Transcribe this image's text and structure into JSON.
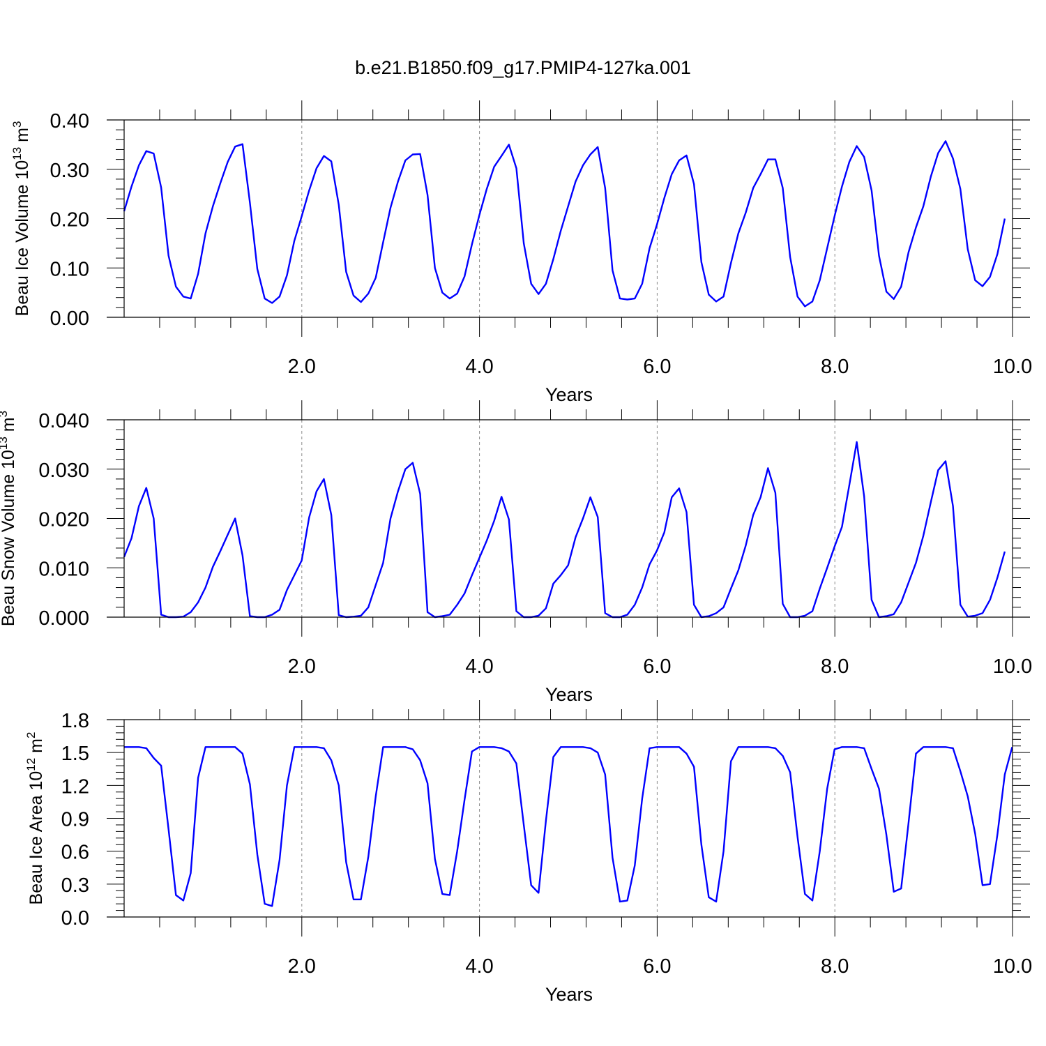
{
  "figure": {
    "title": "b.e21.B1850.f09_g17.PMIP4-127ka.001",
    "line_color": "#0000ff"
  },
  "chart_data": [
    {
      "type": "line",
      "title": "",
      "xlabel": "Years",
      "ylabel": "Beau Ice Volume 10",
      "ylabel_sup": "13",
      "ylabel_unit": "m",
      "ylabel_unit_sup": "3",
      "xlim": [
        0,
        10
      ],
      "ylim": [
        0,
        0.4
      ],
      "xticks": [
        2,
        4,
        6,
        8,
        10
      ],
      "xtick_labels": [
        "2.0",
        "4.0",
        "6.0",
        "8.0",
        "10.0"
      ],
      "yticks": [
        0,
        0.1,
        0.2,
        0.3,
        0.4
      ],
      "ytick_labels": [
        "0.00",
        "0.10",
        "0.20",
        "0.30",
        "0.40"
      ],
      "grid": "vertical dashed at major x ticks",
      "series": [
        {
          "x_start": 0,
          "x_step": 0.0833,
          "values": [
            0.215,
            0.265,
            0.308,
            0.337,
            0.332,
            0.263,
            0.125,
            0.062,
            0.042,
            0.038,
            0.088,
            0.17,
            0.225,
            0.272,
            0.315,
            0.346,
            0.351,
            0.232,
            0.098,
            0.038,
            0.029,
            0.042,
            0.085,
            0.155,
            0.205,
            0.257,
            0.302,
            0.327,
            0.316,
            0.228,
            0.092,
            0.044,
            0.031,
            0.048,
            0.08,
            0.152,
            0.222,
            0.275,
            0.318,
            0.33,
            0.331,
            0.248,
            0.1,
            0.05,
            0.038,
            0.048,
            0.083,
            0.148,
            0.207,
            0.26,
            0.305,
            0.327,
            0.35,
            0.302,
            0.15,
            0.068,
            0.047,
            0.068,
            0.118,
            0.175,
            0.225,
            0.275,
            0.308,
            0.33,
            0.345,
            0.262,
            0.095,
            0.038,
            0.036,
            0.038,
            0.068,
            0.14,
            0.188,
            0.242,
            0.29,
            0.318,
            0.328,
            0.27,
            0.112,
            0.046,
            0.032,
            0.042,
            0.11,
            0.17,
            0.212,
            0.262,
            0.29,
            0.32,
            0.32,
            0.262,
            0.122,
            0.042,
            0.022,
            0.032,
            0.075,
            0.14,
            0.205,
            0.265,
            0.315,
            0.347,
            0.325,
            0.257,
            0.125,
            0.052,
            0.037,
            0.062,
            0.132,
            0.182,
            0.225,
            0.285,
            0.333,
            0.357,
            0.322,
            0.26,
            0.138,
            0.075,
            0.063,
            0.082,
            0.128,
            0.2
          ]
        }
      ]
    },
    {
      "type": "line",
      "title": "",
      "xlabel": "Years",
      "ylabel": "Beau Snow Volume 10",
      "ylabel_sup": "13",
      "ylabel_unit": "m",
      "ylabel_unit_sup": "3",
      "xlim": [
        0,
        10
      ],
      "ylim": [
        0,
        0.04
      ],
      "xticks": [
        2,
        4,
        6,
        8,
        10
      ],
      "xtick_labels": [
        "2.0",
        "4.0",
        "6.0",
        "8.0",
        "10.0"
      ],
      "yticks": [
        0,
        0.01,
        0.02,
        0.03,
        0.04
      ],
      "ytick_labels": [
        "0.000",
        "0.010",
        "0.020",
        "0.030",
        "0.040"
      ],
      "grid": "vertical dashed at major x ticks",
      "series": [
        {
          "x_start": 0,
          "x_step": 0.0833,
          "values": [
            0.0122,
            0.016,
            0.0225,
            0.0262,
            0.02,
            0.0005,
            0.0,
            0.0,
            0.0001,
            0.001,
            0.003,
            0.006,
            0.0102,
            0.0134,
            0.0167,
            0.02,
            0.0125,
            0.0002,
            0.0,
            0.0,
            0.0005,
            0.0015,
            0.0055,
            0.0085,
            0.0115,
            0.0202,
            0.0255,
            0.028,
            0.0207,
            0.0004,
            0.0,
            0.0001,
            0.0003,
            0.002,
            0.0065,
            0.011,
            0.02,
            0.0255,
            0.03,
            0.0313,
            0.025,
            0.001,
            0.0,
            0.0002,
            0.0005,
            0.0025,
            0.0048,
            0.0085,
            0.012,
            0.0155,
            0.0195,
            0.0244,
            0.0198,
            0.0012,
            0.0,
            0.0,
            0.0003,
            0.0018,
            0.0068,
            0.0085,
            0.0105,
            0.0162,
            0.02,
            0.0243,
            0.0203,
            0.0008,
            0.0,
            0.0,
            0.0005,
            0.0025,
            0.006,
            0.0107,
            0.0135,
            0.0172,
            0.0243,
            0.0261,
            0.0213,
            0.0025,
            0.0,
            0.0002,
            0.0008,
            0.002,
            0.0058,
            0.0095,
            0.0145,
            0.0207,
            0.0243,
            0.0302,
            0.0252,
            0.0027,
            0.0,
            0.0,
            0.0003,
            0.0012,
            0.0058,
            0.01,
            0.0143,
            0.0183,
            0.0268,
            0.0355,
            0.0245,
            0.0035,
            0.0,
            0.0002,
            0.0006,
            0.003,
            0.007,
            0.011,
            0.0165,
            0.0233,
            0.0298,
            0.0316,
            0.0225,
            0.0025,
            0.0001,
            0.0003,
            0.0008,
            0.0035,
            0.008,
            0.0133
          ]
        }
      ]
    },
    {
      "type": "line",
      "title": "",
      "xlabel": "Years",
      "ylabel": "Beau Ice Area 10",
      "ylabel_sup": "12",
      "ylabel_unit": "m",
      "ylabel_unit_sup": "2",
      "xlim": [
        0,
        10
      ],
      "ylim": [
        0,
        1.8
      ],
      "xticks": [
        2,
        4,
        6,
        8,
        10
      ],
      "xtick_labels": [
        "2.0",
        "4.0",
        "6.0",
        "8.0",
        "10.0"
      ],
      "yticks": [
        0,
        0.3,
        0.6,
        0.9,
        1.2,
        1.5,
        1.8
      ],
      "ytick_labels": [
        "0.0",
        "0.3",
        "0.6",
        "0.9",
        "1.2",
        "1.5",
        "1.8"
      ],
      "grid": "vertical dashed at major x ticks",
      "series": [
        {
          "x_start": 0,
          "x_step": 0.0833,
          "values": [
            1.55,
            1.55,
            1.55,
            1.54,
            1.45,
            1.38,
            0.8,
            0.2,
            0.15,
            0.4,
            1.27,
            1.55,
            1.55,
            1.55,
            1.55,
            1.55,
            1.49,
            1.21,
            0.57,
            0.12,
            0.1,
            0.52,
            1.2,
            1.55,
            1.55,
            1.55,
            1.55,
            1.54,
            1.43,
            1.2,
            0.5,
            0.16,
            0.16,
            0.55,
            1.1,
            1.55,
            1.55,
            1.55,
            1.55,
            1.53,
            1.43,
            1.22,
            0.53,
            0.21,
            0.2,
            0.6,
            1.07,
            1.51,
            1.55,
            1.55,
            1.55,
            1.54,
            1.51,
            1.4,
            0.84,
            0.29,
            0.22,
            0.88,
            1.46,
            1.55,
            1.55,
            1.55,
            1.55,
            1.54,
            1.5,
            1.3,
            0.54,
            0.14,
            0.15,
            0.47,
            1.08,
            1.54,
            1.55,
            1.55,
            1.55,
            1.55,
            1.49,
            1.37,
            0.66,
            0.18,
            0.14,
            0.6,
            1.42,
            1.55,
            1.55,
            1.55,
            1.55,
            1.55,
            1.54,
            1.47,
            1.32,
            0.73,
            0.21,
            0.15,
            0.6,
            1.17,
            1.53,
            1.55,
            1.55,
            1.55,
            1.54,
            1.35,
            1.17,
            0.75,
            0.23,
            0.26,
            0.86,
            1.49,
            1.55,
            1.55,
            1.55,
            1.55,
            1.54,
            1.33,
            1.1,
            0.76,
            0.29,
            0.3,
            0.75,
            1.3,
            1.55
          ]
        }
      ]
    }
  ]
}
